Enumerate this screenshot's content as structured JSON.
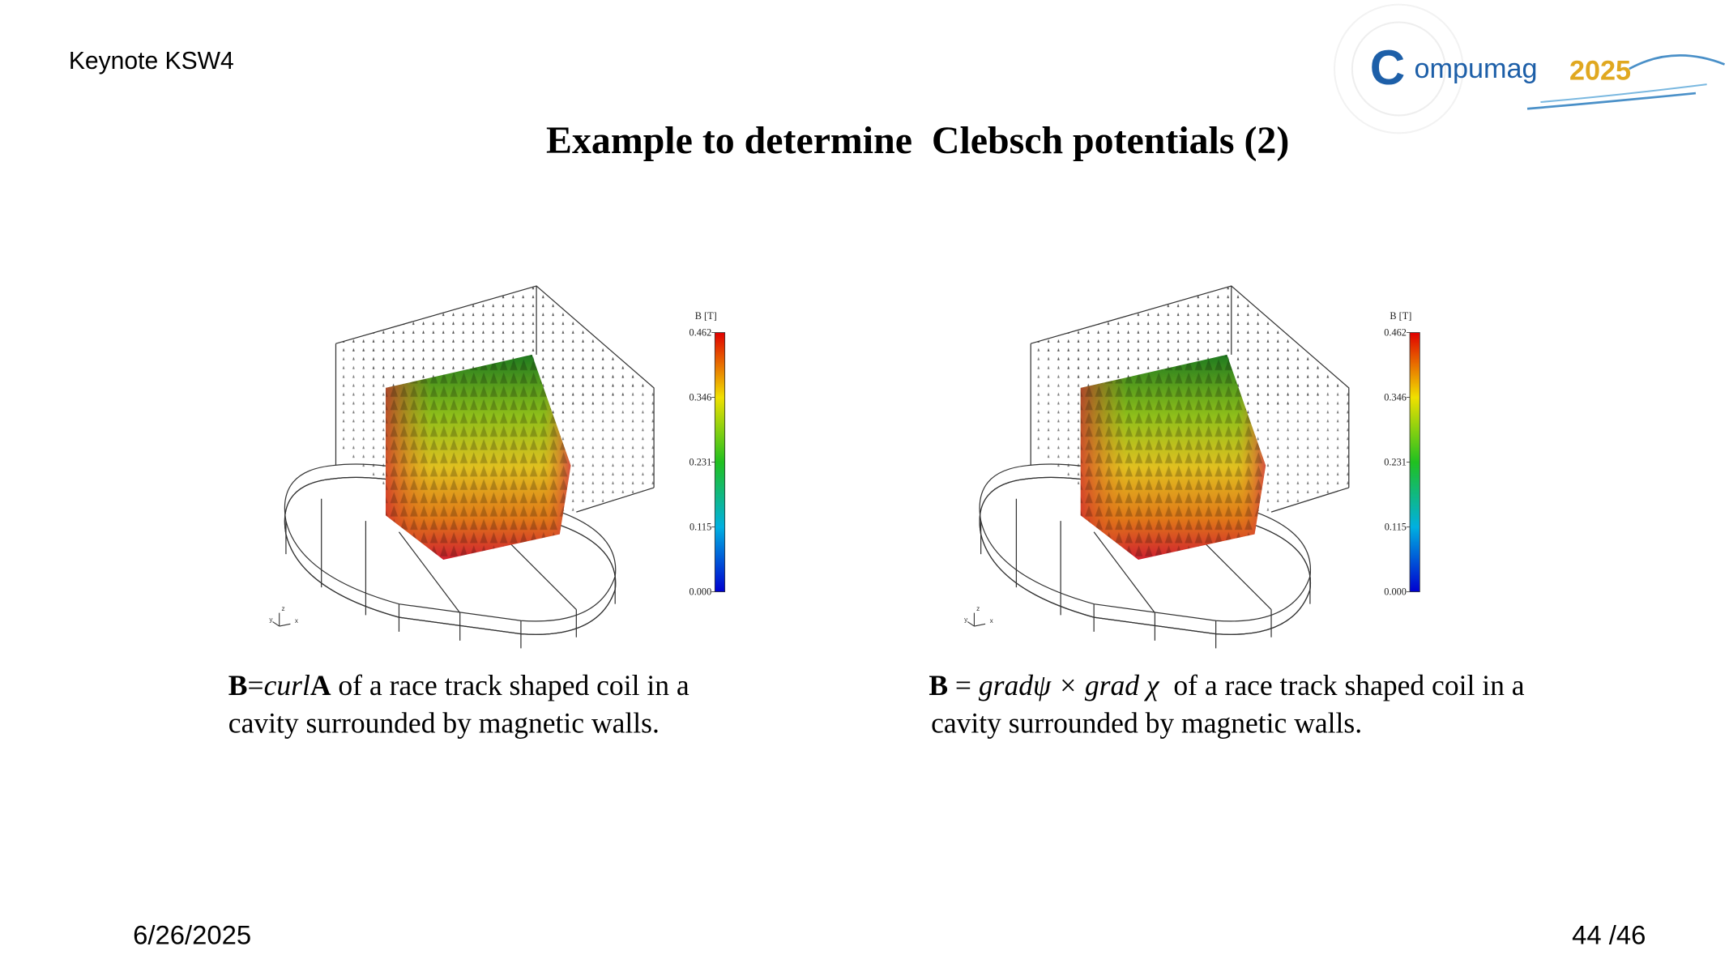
{
  "header": {
    "label": "Keynote KSW4",
    "logo": {
      "initial": "C",
      "name": "ompumag",
      "year": "2025"
    }
  },
  "title": "Example to determine  Clebsch potentials (2)",
  "figures": [
    {
      "colorbar": {
        "label": "B [T]",
        "ticks": [
          "0.462",
          "0.346",
          "0.231",
          "0.115",
          "0.000"
        ]
      },
      "axes": [
        "y",
        "z",
        "x"
      ],
      "caption": {
        "line1": [
          {
            "text": "B",
            "style": "bold"
          },
          {
            "text": "=",
            "style": "normal"
          },
          {
            "text": "curl",
            "style": "italic"
          },
          {
            "text": "A",
            "style": "bold"
          },
          {
            "text": " of a race track shaped coil in a",
            "style": "normal"
          }
        ],
        "line2": "cavity surrounded by magnetic walls."
      }
    },
    {
      "colorbar": {
        "label": "B [T]",
        "ticks": [
          "0.462",
          "0.346",
          "0.231",
          "0.115",
          "0.000"
        ]
      },
      "axes": [
        "y",
        "z",
        "x"
      ],
      "caption": {
        "line1": [
          {
            "text": "B",
            "style": "bold"
          },
          {
            "text": " = ",
            "style": "normal"
          },
          {
            "text": "gradψ × grad χ",
            "style": "italic"
          },
          {
            "text": "  of a race track shaped coil in a",
            "style": "normal"
          }
        ],
        "line2": "cavity surrounded by magnetic walls."
      }
    }
  ],
  "footer": {
    "date": "6/26/2025",
    "page": "44 /46"
  }
}
